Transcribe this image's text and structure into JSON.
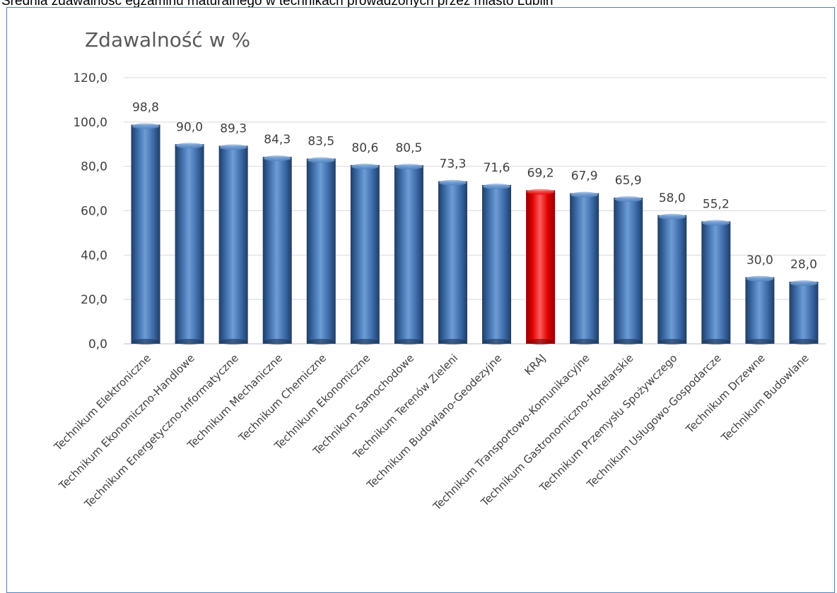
{
  "page": {
    "heading": "Średnia zdawalność egzaminu maturalnego  w technikach prowadzonych przez miasto Lublin"
  },
  "colors": {
    "bar": "#4f81bd",
    "bar_highlight": "#ff0000",
    "frame": "#4f81bd",
    "gridline": "#d9d9d9",
    "text": "#404040"
  },
  "chart_data": {
    "type": "bar",
    "title": "Zdawalność w %",
    "xlabel": "",
    "ylabel": "",
    "ylim": [
      0,
      120
    ],
    "yticks": [
      "0,0",
      "20,0",
      "40,0",
      "60,0",
      "80,0",
      "100,0",
      "120,0"
    ],
    "grid": true,
    "legend": "none",
    "highlight_category": "KRAJ",
    "categories": [
      "Technikum Elektroniczne",
      "Technikum Ekonomiczno-Handlowe",
      "Technikum Energetyczno-Informatyczne",
      "Technikum Mechaniczne",
      "Technikum Chemiczne",
      "Technikum Ekonomiczne",
      "Technikum Samochodowe",
      "Technikum Terenów Zieleni",
      "Technikum Budowlano-Geodezyjne",
      "KRAJ",
      "Technikum Transportowo-Komunikacyjne",
      "Technikum Gastronomiczno-Hotelarskie",
      "Technikum Przemysłu Spożywczego",
      "Technikum Usługowo-Gospodarcze",
      "Technikum Drzewne",
      "Technikum Budowlane"
    ],
    "values": [
      98.8,
      90.0,
      89.3,
      84.3,
      83.5,
      80.6,
      80.5,
      73.3,
      71.6,
      69.2,
      67.9,
      65.9,
      58.0,
      55.2,
      30.0,
      28.0
    ],
    "value_labels": [
      "98,8",
      "90,0",
      "89,3",
      "84,3",
      "83,5",
      "80,6",
      "80,5",
      "73,3",
      "71,6",
      "69,2",
      "67,9",
      "65,9",
      "58,0",
      "55,2",
      "30,0",
      "28,0"
    ]
  }
}
